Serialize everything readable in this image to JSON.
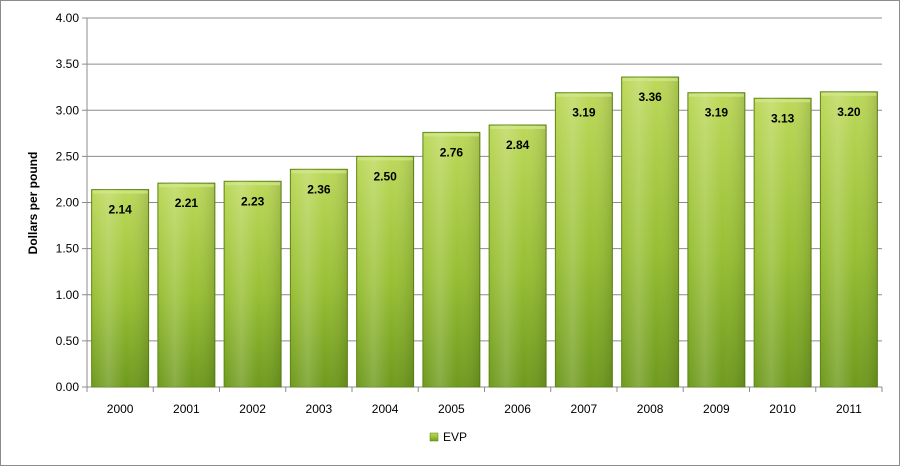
{
  "chart_data": {
    "type": "bar",
    "categories": [
      "2000",
      "2001",
      "2002",
      "2003",
      "2004",
      "2005",
      "2006",
      "2007",
      "2008",
      "2009",
      "2010",
      "2011"
    ],
    "series": [
      {
        "name": "EVP",
        "values": [
          2.14,
          2.21,
          2.23,
          2.36,
          2.5,
          2.76,
          2.84,
          3.19,
          3.36,
          3.19,
          3.13,
          3.2
        ]
      }
    ],
    "data_labels": [
      "2.14",
      "2.21",
      "2.23",
      "2.36",
      "2.50",
      "2.76",
      "2.84",
      "3.19",
      "3.36",
      "3.19",
      "3.13",
      "3.20"
    ],
    "ylabel": "Dollars per pound",
    "xlabel": "",
    "ylim": [
      0,
      4
    ],
    "yticks": [
      "0.00",
      "0.50",
      "1.00",
      "1.50",
      "2.00",
      "2.50",
      "3.00",
      "3.50",
      "4.00"
    ],
    "grid": true,
    "legend": {
      "position": "bottom",
      "label": "EVP"
    },
    "colors": {
      "bar_light": "#b4d24f",
      "bar_dark": "#6f9a1e",
      "bar_edge": "#5e8518",
      "grid": "#8c8c8c"
    }
  }
}
